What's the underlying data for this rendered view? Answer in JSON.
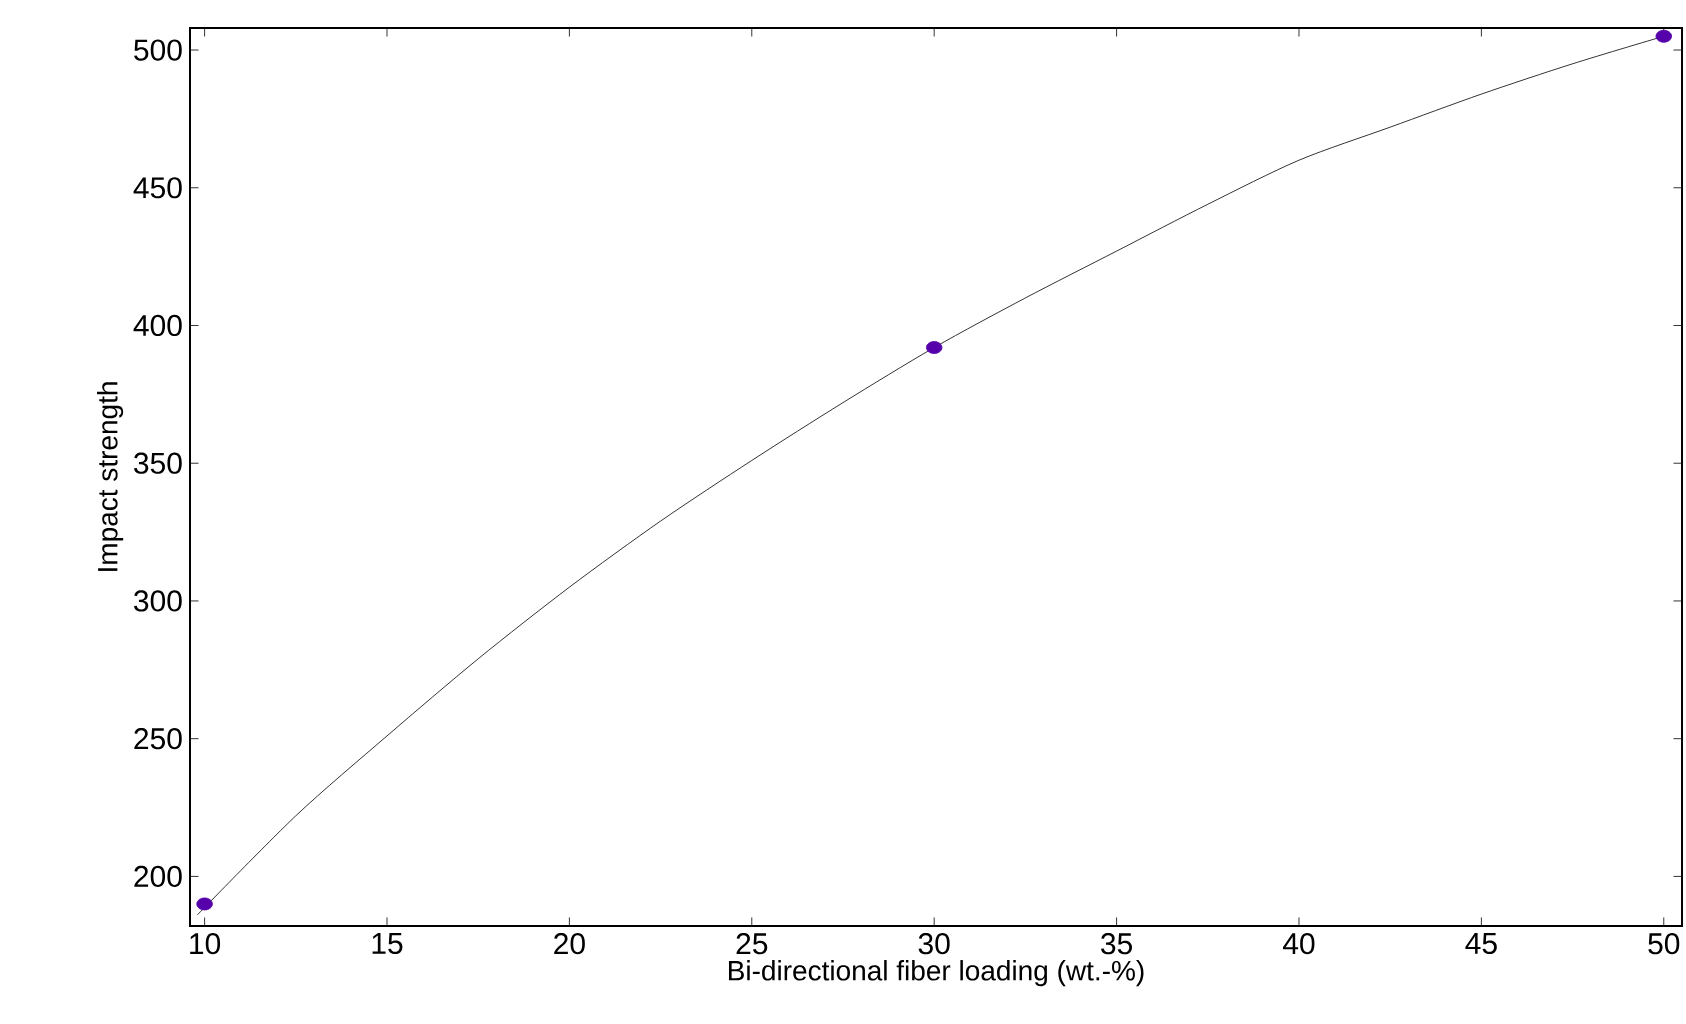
{
  "chart_data": {
    "type": "line",
    "xlabel": "Bi-directional fiber loading (wt.-%)",
    "ylabel": "Impact strength",
    "xlim": [
      9.6,
      50.5
    ],
    "ylim": [
      182,
      508
    ],
    "xticks": [
      10,
      15,
      20,
      25,
      30,
      35,
      40,
      45,
      50
    ],
    "yticks": [
      200,
      250,
      300,
      350,
      400,
      450,
      500
    ],
    "grid": false,
    "series": [
      {
        "marker": "none",
        "color": "#000000",
        "x": [
          9.8,
          12.5,
          15,
          17.5,
          20,
          22.5,
          25,
          27.5,
          30,
          32.5,
          35,
          37.5,
          40,
          42.5,
          45,
          47.5,
          50
        ],
        "values": [
          186,
          222,
          251,
          279,
          305,
          329,
          351,
          372,
          392,
          410,
          427,
          444,
          460,
          472,
          484,
          495,
          505
        ]
      },
      {
        "type": "scatter",
        "marker": "circle",
        "color": "#5500aa",
        "x": [
          10,
          30,
          50
        ],
        "values": [
          190,
          392,
          505
        ]
      }
    ]
  }
}
